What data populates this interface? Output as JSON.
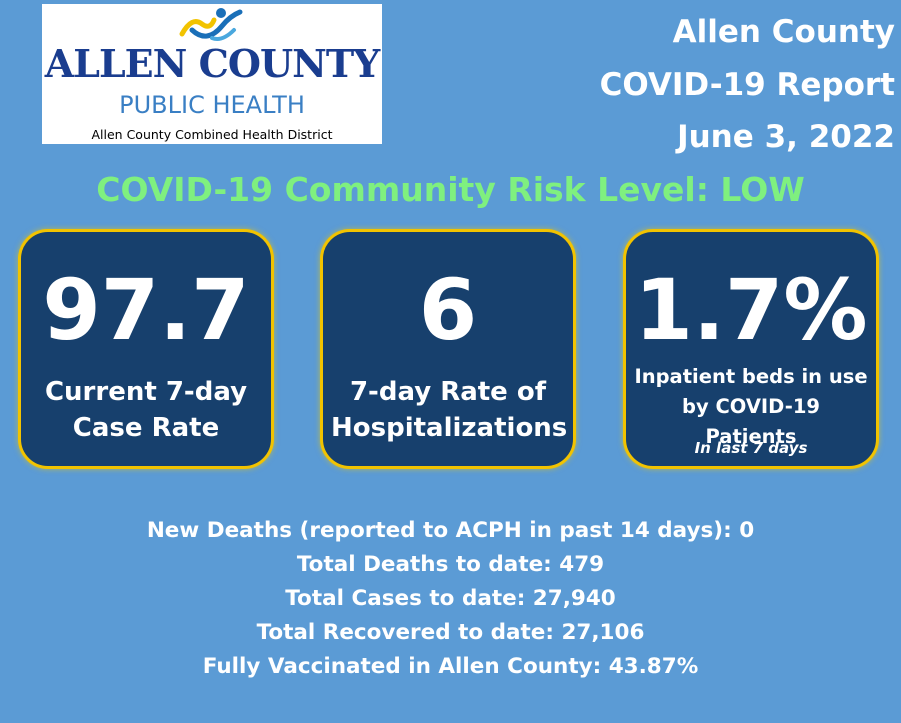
{
  "logo": {
    "main": "ALLEN COUNTY",
    "sub": "PUBLIC HEALTH",
    "tagline": "Allen County Combined Health District",
    "icon": "person-figure-icon"
  },
  "header": {
    "line1": "Allen County",
    "line2": "COVID-19 Report",
    "date": "June 3, 2022"
  },
  "risk_level": "COVID-19 Community Risk Level: LOW",
  "cards": [
    {
      "value": "97.7",
      "label_lines": [
        "Current 7-day",
        "Case Rate"
      ]
    },
    {
      "value": "6",
      "label_lines": [
        "7-day Rate of",
        "Hospitalizations"
      ]
    },
    {
      "value": "1.7%",
      "label_lines": [
        "Inpatient beds in use",
        "by COVID-19 Patients"
      ],
      "note": "In last  7 days"
    }
  ],
  "stats": [
    "New Deaths (reported to ACPH in past 14 days): 0",
    "Total Deaths to date: 479",
    "Total Cases to date: 27,940",
    "Total Recovered to date: 27,106",
    "Fully Vaccinated in Allen County: 43.87%"
  ],
  "colors": {
    "background": "#5b9bd5",
    "card": "#17406d",
    "card_border": "#f2c300",
    "risk_text": "#7ff07f",
    "logo_blue": "#1a3d8f"
  }
}
